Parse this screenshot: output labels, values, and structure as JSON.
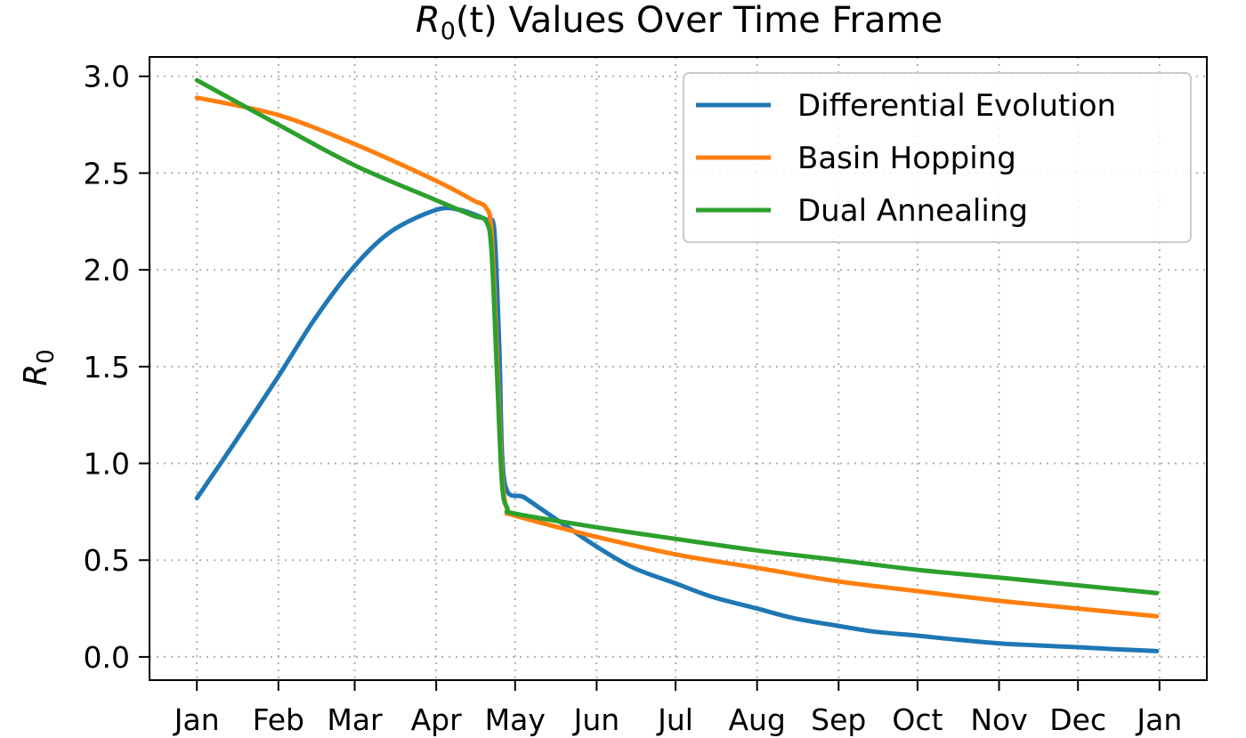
{
  "chart_data": {
    "type": "line",
    "title_main": "R",
    "title_sub": "0",
    "title_paren": "(t)",
    "title_rest": " Values Over Time Frame",
    "ylabel_main": "R",
    "ylabel_sub": "0",
    "xlabel": "",
    "x_ticks": [
      "2020-01-01",
      "2020-02-01",
      "2020-03-01",
      "2020-04-01",
      "2020-05-01",
      "2020-06-01",
      "2020-07-01",
      "2020-08-01",
      "2020-09-01",
      "2020-10-01",
      "2020-11-01",
      "2020-12-01",
      "2021-01-01"
    ],
    "x_tick_labels": [
      "Jan",
      "Feb",
      "Mar",
      "Apr",
      "May",
      "Jun",
      "Jul",
      "Aug",
      "Sep",
      "Oct",
      "Nov",
      "Dec",
      "Jan"
    ],
    "xlim": [
      "2019-12-14",
      "2021-01-19"
    ],
    "ylim": [
      -0.12,
      3.1
    ],
    "y_ticks": [
      0.0,
      0.5,
      1.0,
      1.5,
      2.0,
      2.5,
      3.0
    ],
    "y_tick_labels": [
      "0.0",
      "0.5",
      "1.0",
      "1.5",
      "2.0",
      "2.5",
      "3.0"
    ],
    "grid": true,
    "legend_position": "top-right",
    "series": [
      {
        "name": "Differential Evolution",
        "color": "#1f77b4",
        "x": [
          "2020-01-01",
          "2020-01-15",
          "2020-02-01",
          "2020-02-15",
          "2020-03-01",
          "2020-03-15",
          "2020-04-01",
          "2020-04-10",
          "2020-04-20",
          "2020-04-23",
          "2020-04-25",
          "2020-04-27",
          "2020-05-05",
          "2020-05-20",
          "2020-06-01",
          "2020-06-15",
          "2020-07-01",
          "2020-07-15",
          "2020-08-01",
          "2020-08-15",
          "2020-09-01",
          "2020-09-15",
          "2020-10-01",
          "2020-10-15",
          "2020-11-01",
          "2020-11-15",
          "2020-12-01",
          "2020-12-15",
          "2020-12-31"
        ],
        "y": [
          0.82,
          1.1,
          1.45,
          1.75,
          2.02,
          2.2,
          2.31,
          2.31,
          2.26,
          2.22,
          1.6,
          0.9,
          0.82,
          0.68,
          0.57,
          0.46,
          0.38,
          0.31,
          0.25,
          0.2,
          0.16,
          0.13,
          0.11,
          0.09,
          0.07,
          0.06,
          0.05,
          0.04,
          0.03
        ]
      },
      {
        "name": "Basin Hopping",
        "color": "#ff7f0e",
        "x": [
          "2020-01-01",
          "2020-02-01",
          "2020-03-01",
          "2020-04-01",
          "2020-04-15",
          "2020-04-20",
          "2020-04-22",
          "2020-04-24",
          "2020-04-26",
          "2020-04-28",
          "2020-05-01",
          "2020-06-01",
          "2020-07-01",
          "2020-08-01",
          "2020-09-01",
          "2020-10-01",
          "2020-11-01",
          "2020-12-01",
          "2020-12-31"
        ],
        "y": [
          2.89,
          2.8,
          2.65,
          2.46,
          2.36,
          2.32,
          2.2,
          1.6,
          0.95,
          0.76,
          0.73,
          0.62,
          0.53,
          0.46,
          0.39,
          0.34,
          0.29,
          0.25,
          0.21
        ]
      },
      {
        "name": "Dual Annealing",
        "color": "#2ca02c",
        "x": [
          "2020-01-01",
          "2020-02-01",
          "2020-03-01",
          "2020-04-01",
          "2020-04-15",
          "2020-04-20",
          "2020-04-22",
          "2020-04-24",
          "2020-04-26",
          "2020-04-28",
          "2020-05-01",
          "2020-06-01",
          "2020-07-01",
          "2020-08-01",
          "2020-09-01",
          "2020-10-01",
          "2020-11-01",
          "2020-12-01",
          "2020-12-31"
        ],
        "y": [
          2.98,
          2.75,
          2.54,
          2.36,
          2.28,
          2.25,
          2.1,
          1.5,
          0.9,
          0.77,
          0.74,
          0.67,
          0.61,
          0.55,
          0.5,
          0.45,
          0.41,
          0.37,
          0.33
        ]
      }
    ]
  }
}
